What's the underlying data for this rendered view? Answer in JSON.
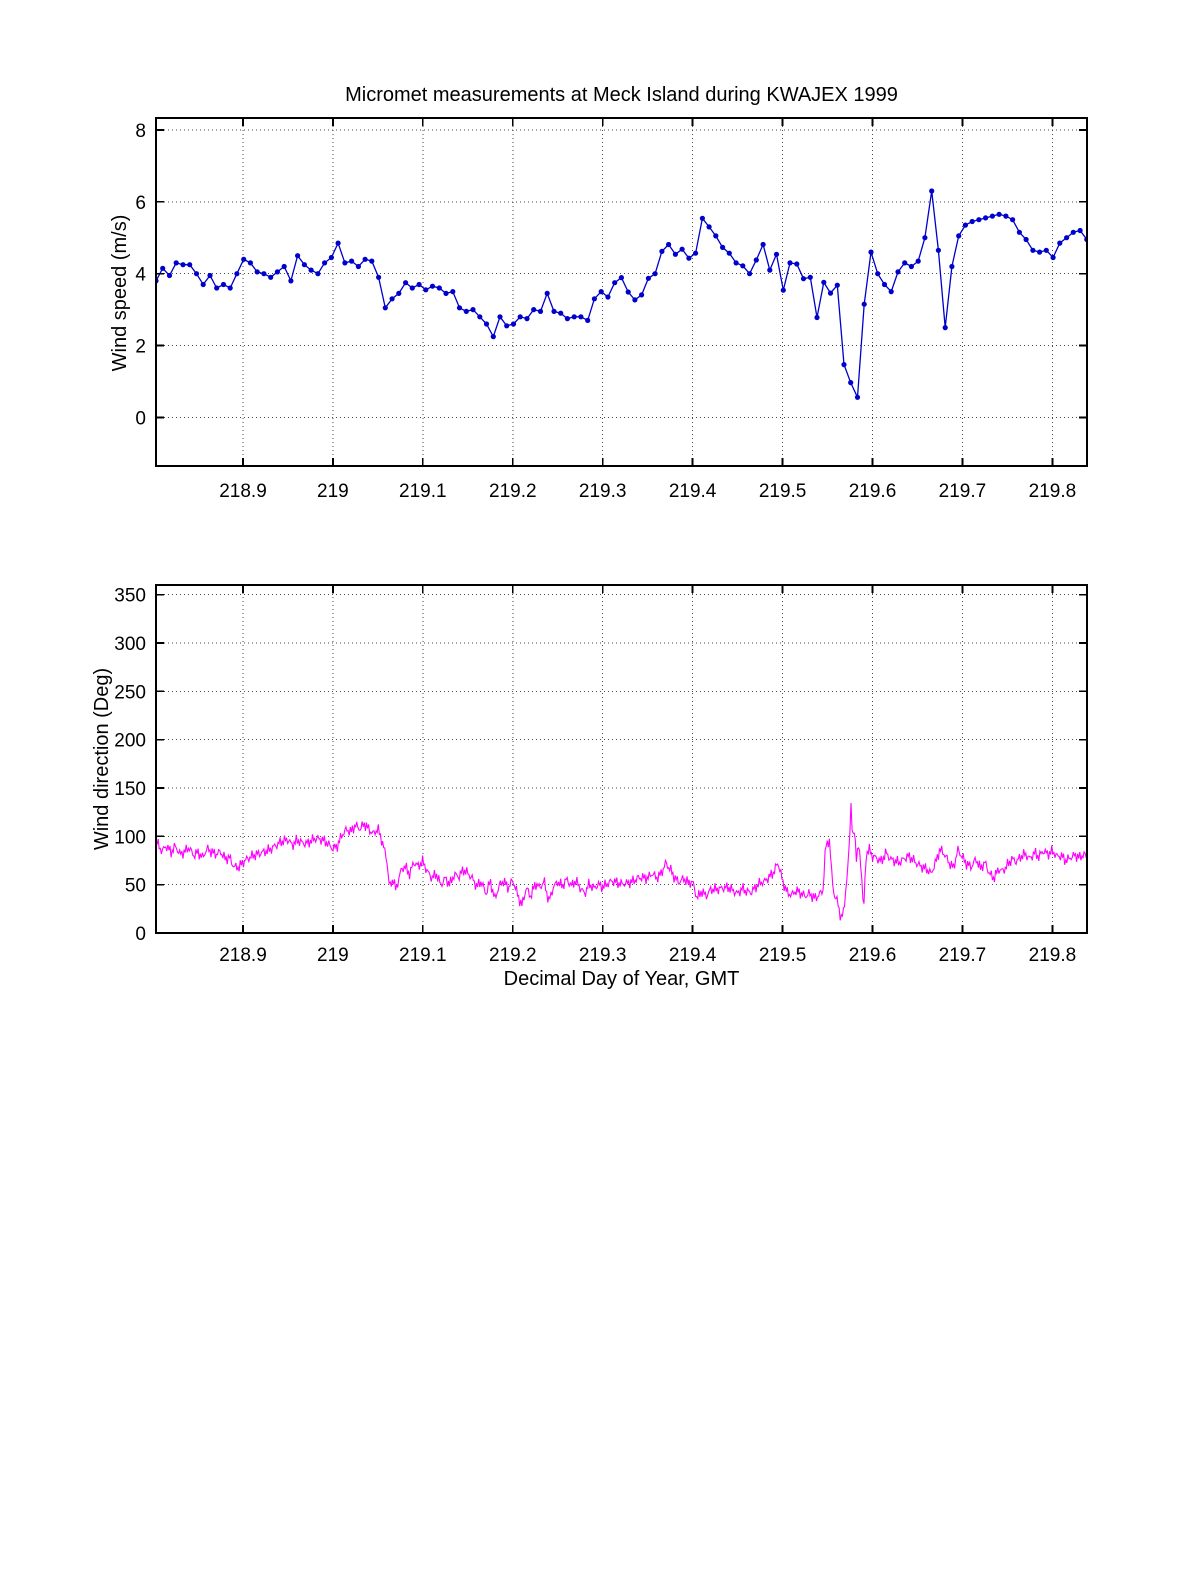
{
  "title": "Micromet measurements at Meck Island during KWAJEX 1999",
  "chart_data": [
    {
      "type": "line",
      "name": "wind-speed",
      "ylabel": "Wind speed (m/s)",
      "series_color": "#0000cc",
      "grid_color": "#4a4a4a",
      "grid": "dotted",
      "legend": "none",
      "marker": "dot",
      "xlim": [
        218.8033,
        219.8385
      ],
      "ylim": [
        -1.35,
        8.33
      ],
      "xticks": [
        218.9,
        219,
        219.1,
        219.2,
        219.3,
        219.4,
        219.5,
        219.6,
        219.7,
        219.8
      ],
      "xtick_labels": [
        "218.9",
        "219",
        "219.1",
        "219.2",
        "219.3",
        "219.4",
        "219.5",
        "219.6",
        "219.7",
        "219.8"
      ],
      "yticks": [
        0,
        2,
        4,
        6,
        8
      ],
      "ytick_labels": [
        "0",
        "2",
        "4",
        "6",
        "8"
      ],
      "x_start": 218.8033,
      "x_step": 0.0075,
      "y": [
        3.8,
        4.15,
        3.95,
        4.3,
        4.25,
        4.25,
        4.0,
        3.7,
        3.95,
        3.6,
        3.7,
        3.6,
        4.0,
        4.4,
        4.3,
        4.05,
        4.0,
        3.9,
        4.05,
        4.2,
        3.8,
        4.5,
        4.25,
        4.1,
        4.0,
        4.3,
        4.45,
        4.85,
        4.3,
        4.35,
        4.2,
        4.4,
        4.35,
        3.9,
        3.05,
        3.3,
        3.45,
        3.75,
        3.6,
        3.7,
        3.55,
        3.65,
        3.6,
        3.45,
        3.5,
        3.05,
        2.95,
        3.0,
        2.8,
        2.6,
        2.25,
        2.8,
        2.55,
        2.6,
        2.8,
        2.75,
        3.0,
        2.95,
        3.45,
        2.95,
        2.9,
        2.75,
        2.8,
        2.8,
        2.7,
        3.3,
        3.5,
        3.35,
        3.75,
        3.89,
        3.49,
        3.27,
        3.41,
        3.87,
        4.0,
        4.62,
        4.81,
        4.54,
        4.68,
        4.43,
        4.57,
        5.54,
        5.3,
        5.05,
        4.73,
        4.57,
        4.3,
        4.22,
        4.0,
        4.38,
        4.81,
        4.1,
        4.54,
        3.54,
        4.3,
        4.27,
        3.86,
        3.9,
        2.78,
        3.76,
        3.46,
        3.68,
        1.47,
        0.97,
        0.56,
        3.15,
        4.6,
        4.0,
        3.7,
        3.5,
        4.05,
        4.3,
        4.2,
        4.35,
        5.0,
        6.3,
        4.65,
        2.5,
        4.2,
        5.05,
        5.35,
        5.45,
        5.5,
        5.55,
        5.6,
        5.65,
        5.6,
        5.5,
        5.15,
        4.95,
        4.65,
        4.6,
        4.65,
        4.45,
        4.85,
        5.0,
        5.15,
        5.2,
        4.95
      ]
    },
    {
      "type": "line",
      "name": "wind-direction",
      "ylabel": "Wind direction (Deg)",
      "xlabel": "Decimal Day of Year, GMT",
      "series_color": "#ff00ff",
      "grid_color": "#4a4a4a",
      "grid": "dotted",
      "legend": "none",
      "marker": "none",
      "xlim": [
        218.8033,
        219.8385
      ],
      "ylim": [
        0,
        360
      ],
      "xticks": [
        218.9,
        219,
        219.1,
        219.2,
        219.3,
        219.4,
        219.5,
        219.6,
        219.7,
        219.8
      ],
      "xtick_labels": [
        "218.9",
        "219",
        "219.1",
        "219.2",
        "219.3",
        "219.4",
        "219.5",
        "219.6",
        "219.7",
        "219.8"
      ],
      "yticks": [
        0,
        50,
        100,
        150,
        200,
        250,
        300,
        350
      ],
      "ytick_labels": [
        "0",
        "50",
        "100",
        "150",
        "200",
        "250",
        "300",
        "350"
      ],
      "noise_amplitude_deg": 6,
      "sample_step_day": 0.0012,
      "anchors": [
        [
          218.803,
          100
        ],
        [
          218.806,
          92
        ],
        [
          218.81,
          86
        ],
        [
          218.815,
          90
        ],
        [
          218.82,
          82
        ],
        [
          218.825,
          88
        ],
        [
          218.83,
          80
        ],
        [
          218.835,
          84
        ],
        [
          218.84,
          90
        ],
        [
          218.845,
          82
        ],
        [
          218.85,
          85
        ],
        [
          218.855,
          78
        ],
        [
          218.86,
          86
        ],
        [
          218.865,
          82
        ],
        [
          218.87,
          80
        ],
        [
          218.875,
          84
        ],
        [
          218.88,
          78
        ],
        [
          218.885,
          80
        ],
        [
          218.89,
          70
        ],
        [
          218.895,
          68
        ],
        [
          218.9,
          72
        ],
        [
          218.91,
          78
        ],
        [
          218.92,
          84
        ],
        [
          218.93,
          88
        ],
        [
          218.94,
          92
        ],
        [
          218.95,
          95
        ],
        [
          218.955,
          90
        ],
        [
          218.96,
          97
        ],
        [
          218.97,
          94
        ],
        [
          218.98,
          97
        ],
        [
          218.99,
          94
        ],
        [
          219.0,
          88
        ],
        [
          219.005,
          92
        ],
        [
          219.01,
          103
        ],
        [
          219.015,
          108
        ],
        [
          219.02,
          104
        ],
        [
          219.025,
          110
        ],
        [
          219.03,
          106
        ],
        [
          219.035,
          112
        ],
        [
          219.04,
          108
        ],
        [
          219.045,
          104
        ],
        [
          219.05,
          110
        ],
        [
          219.055,
          95
        ],
        [
          219.06,
          75
        ],
        [
          219.063,
          45
        ],
        [
          219.067,
          55
        ],
        [
          219.07,
          42
        ],
        [
          219.075,
          62
        ],
        [
          219.08,
          70
        ],
        [
          219.085,
          62
        ],
        [
          219.09,
          75
        ],
        [
          219.095,
          70
        ],
        [
          219.1,
          74
        ],
        [
          219.105,
          62
        ],
        [
          219.11,
          55
        ],
        [
          219.115,
          60
        ],
        [
          219.12,
          50
        ],
        [
          219.125,
          58
        ],
        [
          219.13,
          52
        ],
        [
          219.135,
          62
        ],
        [
          219.14,
          58
        ],
        [
          219.145,
          64
        ],
        [
          219.15,
          60
        ],
        [
          219.155,
          55
        ],
        [
          219.16,
          48
        ],
        [
          219.165,
          55
        ],
        [
          219.17,
          42
        ],
        [
          219.175,
          55
        ],
        [
          219.18,
          35
        ],
        [
          219.185,
          48
        ],
        [
          219.19,
          52
        ],
        [
          219.195,
          45
        ],
        [
          219.2,
          55
        ],
        [
          219.205,
          42
        ],
        [
          219.21,
          30
        ],
        [
          219.215,
          48
        ],
        [
          219.22,
          38
        ],
        [
          219.225,
          50
        ],
        [
          219.23,
          45
        ],
        [
          219.235,
          52
        ],
        [
          219.24,
          32
        ],
        [
          219.245,
          48
        ],
        [
          219.25,
          55
        ],
        [
          219.255,
          50
        ],
        [
          219.26,
          56
        ],
        [
          219.265,
          48
        ],
        [
          219.27,
          52
        ],
        [
          219.275,
          45
        ],
        [
          219.28,
          40
        ],
        [
          219.285,
          52
        ],
        [
          219.29,
          48
        ],
        [
          219.295,
          52
        ],
        [
          219.3,
          48
        ],
        [
          219.31,
          52
        ],
        [
          219.32,
          50
        ],
        [
          219.33,
          54
        ],
        [
          219.34,
          58
        ],
        [
          219.35,
          55
        ],
        [
          219.355,
          60
        ],
        [
          219.36,
          56
        ],
        [
          219.365,
          62
        ],
        [
          219.37,
          74
        ],
        [
          219.375,
          68
        ],
        [
          219.38,
          58
        ],
        [
          219.385,
          52
        ],
        [
          219.39,
          55
        ],
        [
          219.395,
          50
        ],
        [
          219.4,
          52
        ],
        [
          219.405,
          36
        ],
        [
          219.41,
          45
        ],
        [
          219.415,
          40
        ],
        [
          219.42,
          46
        ],
        [
          219.43,
          44
        ],
        [
          219.44,
          46
        ],
        [
          219.45,
          42
        ],
        [
          219.455,
          48
        ],
        [
          219.46,
          44
        ],
        [
          219.465,
          42
        ],
        [
          219.47,
          46
        ],
        [
          219.475,
          50
        ],
        [
          219.48,
          52
        ],
        [
          219.485,
          58
        ],
        [
          219.49,
          64
        ],
        [
          219.495,
          75
        ],
        [
          219.5,
          55
        ],
        [
          219.505,
          42
        ],
        [
          219.51,
          38
        ],
        [
          219.515,
          42
        ],
        [
          219.52,
          40
        ],
        [
          219.525,
          38
        ],
        [
          219.53,
          42
        ],
        [
          219.535,
          38
        ],
        [
          219.54,
          40
        ],
        [
          219.545,
          45
        ],
        [
          219.548,
          90
        ],
        [
          219.552,
          95
        ],
        [
          219.555,
          55
        ],
        [
          219.558,
          35
        ],
        [
          219.562,
          30
        ],
        [
          219.565,
          12
        ],
        [
          219.568,
          25
        ],
        [
          219.572,
          60
        ],
        [
          219.5745,
          100
        ],
        [
          219.576,
          138
        ],
        [
          219.578,
          95
        ],
        [
          219.58,
          110
        ],
        [
          219.582,
          80
        ],
        [
          219.585,
          90
        ],
        [
          219.588,
          60
        ],
        [
          219.59,
          18
        ],
        [
          219.593,
          80
        ],
        [
          219.596,
          85
        ],
        [
          219.6,
          78
        ],
        [
          219.61,
          75
        ],
        [
          219.615,
          85
        ],
        [
          219.62,
          78
        ],
        [
          219.63,
          72
        ],
        [
          219.64,
          78
        ],
        [
          219.65,
          72
        ],
        [
          219.66,
          68
        ],
        [
          219.665,
          62
        ],
        [
          219.67,
          72
        ],
        [
          219.675,
          85
        ],
        [
          219.68,
          80
        ],
        [
          219.685,
          72
        ],
        [
          219.69,
          68
        ],
        [
          219.695,
          88
        ],
        [
          219.7,
          80
        ],
        [
          219.705,
          72
        ],
        [
          219.71,
          68
        ],
        [
          219.715,
          75
        ],
        [
          219.72,
          65
        ],
        [
          219.725,
          72
        ],
        [
          219.73,
          62
        ],
        [
          219.735,
          58
        ],
        [
          219.74,
          68
        ],
        [
          219.745,
          65
        ],
        [
          219.75,
          70
        ],
        [
          219.755,
          75
        ],
        [
          219.76,
          72
        ],
        [
          219.765,
          78
        ],
        [
          219.77,
          82
        ],
        [
          219.775,
          78
        ],
        [
          219.78,
          85
        ],
        [
          219.785,
          80
        ],
        [
          219.79,
          85
        ],
        [
          219.795,
          80
        ],
        [
          219.8,
          83
        ],
        [
          219.805,
          78
        ],
        [
          219.81,
          80
        ],
        [
          219.815,
          76
        ],
        [
          219.82,
          80
        ],
        [
          219.825,
          82
        ],
        [
          219.83,
          78
        ],
        [
          219.835,
          80
        ],
        [
          219.838,
          77
        ]
      ]
    }
  ]
}
